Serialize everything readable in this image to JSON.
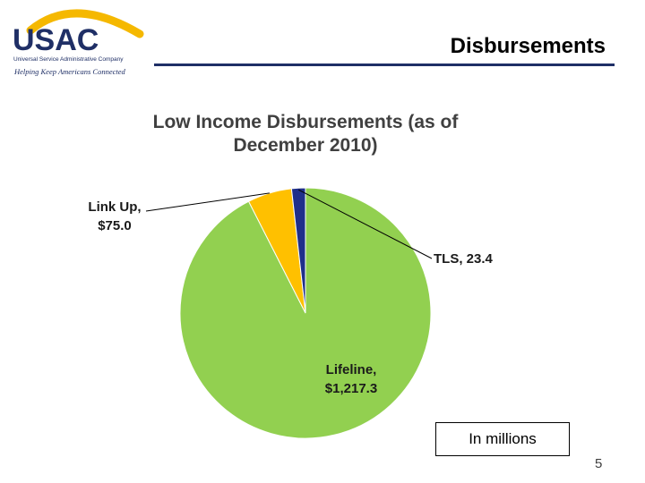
{
  "header": {
    "logo_text": "USAC",
    "logo_subtext": "Universal Service Administrative Company",
    "tagline": "Helping Keep Americans Connected",
    "slide_title": "Disbursements"
  },
  "chart_data": {
    "type": "pie",
    "title": "Low Income Disbursements (as of December 2010)",
    "title_lines": [
      "Low Income Disbursements (as of",
      "December 2010)"
    ],
    "units_note": "In millions",
    "slices": [
      {
        "category": "Lifeline",
        "value": 1217.3,
        "label_lines": [
          "Lifeline,",
          "$1,217.3"
        ],
        "color": "#92d050"
      },
      {
        "category": "Link Up",
        "value": 75.0,
        "label_lines": [
          "Link Up,",
          "$75.0"
        ],
        "color": "#ffc000"
      },
      {
        "category": "TLS",
        "value": 23.4,
        "label_lines": [
          "TLS, 23.4"
        ],
        "color": "#1f2f8a"
      }
    ]
  },
  "footer": {
    "page_number": "5"
  }
}
